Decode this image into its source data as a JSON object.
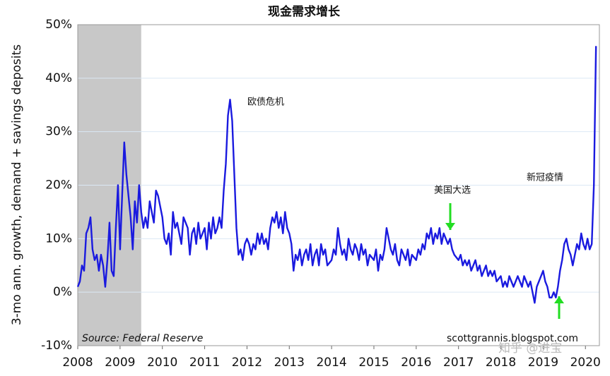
{
  "chart_data": {
    "type": "line",
    "title": "现金需求增长",
    "ylabel": "3-mo ann. growth, demand + savings deposits",
    "source": "Source: Federal Reserve",
    "credit": "scottgrannis.blogspot.com",
    "watermark": "知乎 @进宝",
    "annotations": [
      "欧债危机",
      "美国大选",
      "新冠疫情"
    ],
    "recession": [
      2008,
      2009.5
    ],
    "xlim": [
      2008,
      2020.33
    ],
    "xticks": [
      2008,
      2009,
      2010,
      2011,
      2012,
      2013,
      2014,
      2015,
      2016,
      2017,
      2018,
      2019,
      2020
    ],
    "ylim": [
      -10,
      50
    ],
    "yticks": [
      {
        "value": -10,
        "label": "-10%"
      },
      {
        "value": 0,
        "label": "0%"
      },
      {
        "value": 10,
        "label": "10%"
      },
      {
        "value": 20,
        "label": "20%"
      },
      {
        "value": 30,
        "label": "30%"
      },
      {
        "value": 40,
        "label": "40%"
      },
      {
        "value": 50,
        "label": "50%"
      }
    ],
    "grid": true,
    "series": [
      {
        "name": "cash demand",
        "color": "#1a1adf",
        "x": [
          2008.0,
          2008.05,
          2008.1,
          2008.15,
          2008.2,
          2008.25,
          2008.3,
          2008.35,
          2008.4,
          2008.45,
          2008.5,
          2008.55,
          2008.6,
          2008.65,
          2008.7,
          2008.75,
          2008.8,
          2008.85,
          2008.9,
          2008.95,
          2009.0,
          2009.05,
          2009.1,
          2009.15,
          2009.2,
          2009.25,
          2009.3,
          2009.35,
          2009.4,
          2009.45,
          2009.5,
          2009.55,
          2009.6,
          2009.65,
          2009.7,
          2009.75,
          2009.8,
          2009.85,
          2009.9,
          2010.0,
          2010.05,
          2010.1,
          2010.15,
          2010.2,
          2010.25,
          2010.3,
          2010.35,
          2010.4,
          2010.45,
          2010.5,
          2010.55,
          2010.6,
          2010.65,
          2010.7,
          2010.75,
          2010.8,
          2010.85,
          2010.9,
          2011.0,
          2011.05,
          2011.1,
          2011.15,
          2011.2,
          2011.25,
          2011.3,
          2011.35,
          2011.4,
          2011.45,
          2011.5,
          2011.55,
          2011.6,
          2011.65,
          2011.7,
          2011.75,
          2011.8,
          2011.85,
          2011.9,
          2011.95,
          2012.0,
          2012.05,
          2012.1,
          2012.15,
          2012.2,
          2012.25,
          2012.3,
          2012.35,
          2012.4,
          2012.45,
          2012.5,
          2012.55,
          2012.6,
          2012.65,
          2012.7,
          2012.75,
          2012.8,
          2012.85,
          2012.9,
          2012.95,
          2013.0,
          2013.05,
          2013.1,
          2013.15,
          2013.2,
          2013.25,
          2013.3,
          2013.35,
          2013.4,
          2013.45,
          2013.5,
          2013.55,
          2013.6,
          2013.65,
          2013.7,
          2013.75,
          2013.8,
          2013.85,
          2013.9,
          2014.0,
          2014.05,
          2014.1,
          2014.15,
          2014.2,
          2014.25,
          2014.3,
          2014.35,
          2014.4,
          2014.45,
          2014.5,
          2014.55,
          2014.6,
          2014.65,
          2014.7,
          2014.75,
          2014.8,
          2014.85,
          2014.9,
          2015.0,
          2015.05,
          2015.1,
          2015.15,
          2015.2,
          2015.25,
          2015.3,
          2015.35,
          2015.4,
          2015.45,
          2015.5,
          2015.55,
          2015.6,
          2015.65,
          2015.7,
          2015.75,
          2015.8,
          2015.85,
          2015.9,
          2016.0,
          2016.05,
          2016.1,
          2016.15,
          2016.2,
          2016.25,
          2016.3,
          2016.35,
          2016.4,
          2016.45,
          2016.5,
          2016.55,
          2016.6,
          2016.65,
          2016.7,
          2016.75,
          2016.8,
          2016.85,
          2016.9,
          2017.0,
          2017.05,
          2017.1,
          2017.15,
          2017.2,
          2017.25,
          2017.3,
          2017.35,
          2017.4,
          2017.45,
          2017.5,
          2017.55,
          2017.6,
          2017.65,
          2017.7,
          2017.75,
          2017.8,
          2017.85,
          2017.9,
          2018.0,
          2018.05,
          2018.1,
          2018.15,
          2018.2,
          2018.25,
          2018.3,
          2018.35,
          2018.4,
          2018.45,
          2018.5,
          2018.55,
          2018.6,
          2018.65,
          2018.7,
          2018.75,
          2018.8,
          2018.85,
          2018.9,
          2018.95,
          2019.0,
          2019.05,
          2019.1,
          2019.15,
          2019.2,
          2019.25,
          2019.3,
          2019.35,
          2019.4,
          2019.45,
          2019.5,
          2019.55,
          2019.6,
          2019.65,
          2019.7,
          2019.75,
          2019.8,
          2019.85,
          2019.9,
          2019.95,
          2020.0,
          2020.05,
          2020.1,
          2020.15,
          2020.2,
          2020.25
        ],
        "values": [
          1,
          2,
          5,
          4,
          11,
          12,
          14,
          8,
          6,
          7,
          4,
          7,
          5,
          1,
          6,
          13,
          4,
          3,
          12,
          20,
          8,
          18,
          28,
          22,
          18,
          14,
          8,
          17,
          13,
          20,
          15,
          12,
          14,
          12,
          17,
          15,
          13,
          19,
          18,
          14,
          10,
          9,
          11,
          7,
          15,
          12,
          13,
          11,
          9,
          14,
          13,
          12,
          7,
          11,
          12,
          9,
          13,
          10,
          12,
          8,
          13,
          10,
          14,
          11,
          12,
          14,
          12,
          19,
          24,
          33,
          36,
          32,
          22,
          12,
          7,
          8,
          6,
          9,
          10,
          9,
          7,
          9,
          8,
          11,
          9,
          11,
          9,
          10,
          8,
          12,
          14,
          13,
          15,
          12,
          14,
          11,
          15,
          12,
          11,
          9,
          4,
          7,
          6,
          8,
          5,
          7,
          8,
          6,
          9,
          5,
          7,
          8,
          5,
          9,
          7,
          8,
          5,
          6,
          8,
          7,
          12,
          9,
          7,
          8,
          6,
          10,
          8,
          7,
          9,
          8,
          6,
          9,
          7,
          8,
          5,
          7,
          6,
          8,
          4,
          7,
          6,
          8,
          12,
          10,
          8,
          7,
          9,
          6,
          5,
          8,
          7,
          6,
          8,
          5,
          7,
          6,
          8,
          7,
          9,
          8,
          11,
          10,
          12,
          9,
          11,
          10,
          12,
          9,
          11,
          10,
          9,
          10,
          8,
          7,
          6,
          7,
          5,
          6,
          5,
          6,
          4,
          5,
          6,
          4,
          5,
          3,
          4,
          5,
          3,
          4,
          3,
          4,
          2,
          3,
          1,
          2,
          1,
          3,
          2,
          1,
          2,
          3,
          2,
          1,
          3,
          2,
          1,
          2,
          0,
          -2,
          1,
          2,
          3,
          4,
          2,
          1,
          -1,
          -1,
          0,
          -1,
          1,
          4,
          6,
          9,
          10,
          8,
          7,
          5,
          7,
          9,
          8,
          11,
          9,
          8,
          10,
          8,
          9,
          20,
          46
        ]
      }
    ]
  }
}
